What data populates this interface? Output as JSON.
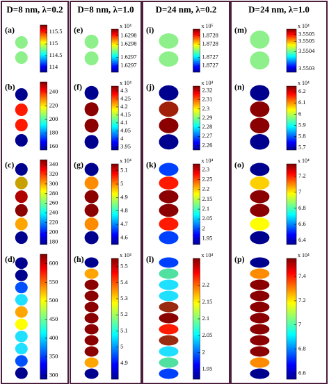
{
  "columns": [
    {
      "header": "D=8 nm, λ=0.2",
      "panels": [
        {
          "label": "(a)",
          "lim": [
            113.8,
            115.8
          ],
          "ticks": [
            115.5,
            115,
            114.5,
            114
          ],
          "shapes": [
            "#8ef08a",
            "#8ef08a"
          ]
        },
        {
          "label": "(b)",
          "lim": [
            155,
            255
          ],
          "ticks": [
            240,
            220,
            200,
            180,
            160
          ],
          "shapes": [
            "#00008f",
            "#ff1a00",
            "#ff1a00",
            "#00008f"
          ]
        },
        {
          "label": "(c)",
          "lim": [
            175,
            350
          ],
          "ticks": [
            340,
            320,
            300,
            280,
            260,
            240,
            220,
            200,
            180
          ],
          "shapes": [
            "#00008f",
            "#c8a000",
            "#b00000",
            "#8b0000",
            "#ffa500",
            "#00008f"
          ]
        },
        {
          "label": "(d)",
          "lim": [
            290,
            625
          ],
          "ticks": [
            600,
            550,
            500,
            450,
            400,
            350,
            300
          ],
          "shapes": [
            "#00008f",
            "#00008f",
            "#0050ff",
            "#20e0ff",
            "#ffa500",
            "#ffff00",
            "#20e0ff",
            "#20e0ff",
            "#0050ff",
            "#00008f"
          ]
        }
      ]
    },
    {
      "header": "D=8 nm, λ=1.0",
      "panels": [
        {
          "label": "(e)",
          "exponent": "x 10⁴",
          "lim": [
            1.62965,
            1.62985
          ],
          "ticks": [
            {
              "value": 1.62982,
              "label": "1.6298"
            },
            {
              "value": 1.62978,
              "label": "1.6298"
            },
            {
              "value": 1.62972,
              "label": "1.6297"
            },
            {
              "value": 1.62968,
              "label": "1.6297"
            }
          ],
          "shapes": [
            "#8ef08a",
            "#8ef08a"
          ]
        },
        {
          "label": "(f)",
          "exponent": "x 10⁴",
          "lim": [
            3.93,
            4.33
          ],
          "ticks": [
            4.3,
            4.25,
            4.2,
            4.15,
            4.1,
            4.05,
            4,
            3.95
          ],
          "shapes": [
            "#00008f",
            "#8b0000",
            "#8b0000",
            "#00008f"
          ]
        },
        {
          "label": "(g)",
          "exponent": "x 10⁴",
          "lim": [
            4.55,
            5.15
          ],
          "ticks": [
            5.1,
            5,
            4.9,
            4.8,
            4.7,
            4.6
          ],
          "shapes": [
            "#00008f",
            "#ff8c00",
            "#8b0000",
            "#8b0000",
            "#ff8c00",
            "#00008f"
          ]
        },
        {
          "label": "(h)",
          "exponent": "x 10⁴",
          "lim": [
            4.8,
            5.55
          ],
          "ticks": [
            5.5,
            5.4,
            5.3,
            5.2,
            5.1,
            5,
            4.9
          ],
          "shapes": [
            "#00008f",
            "#ffa500",
            "#8b0000",
            "#8b0000",
            "#8b0000",
            "#8b0000",
            "#8b0000",
            "#8b0000",
            "#8b0000",
            "#ffa500",
            "#00008f"
          ]
        }
      ]
    },
    {
      "header": "D=24 nm, λ=0.2",
      "panels": [
        {
          "label": "(i)",
          "exponent": "x 10⁵",
          "lim": [
            1.87265,
            1.87285
          ],
          "ticks": [
            {
              "value": 1.87282,
              "label": "1.8728"
            },
            {
              "value": 1.87278,
              "label": "1.8728"
            },
            {
              "value": 1.87272,
              "label": "1.8727"
            },
            {
              "value": 1.87268,
              "label": "1.8727"
            }
          ],
          "shapes": [
            "#8ef08a",
            "#8ef08a"
          ]
        },
        {
          "label": "(j)",
          "exponent": "x 10⁴",
          "lim": [
            2.255,
            2.325
          ],
          "ticks": [
            2.32,
            2.31,
            2.3,
            2.29,
            2.28,
            2.27,
            2.26
          ],
          "shapes": [
            "#00008f",
            "#a0200a",
            "#8b0000",
            "#00008f"
          ]
        },
        {
          "label": "(k)",
          "exponent": "x 10⁴",
          "lim": [
            1.92,
            2.33
          ],
          "ticks": [
            2.3,
            2.25,
            2.2,
            2.15,
            2.1,
            2.05,
            2,
            1.95
          ],
          "shapes": [
            "#0040ff",
            "#ff1a00",
            "#8b0000",
            "#8b0000",
            "#ff1a00",
            "#0040ff"
          ]
        },
        {
          "label": "(l)",
          "exponent": "x 10⁴",
          "lim": [
            1.92,
            2.28
          ],
          "ticks": [
            2.2,
            2.15,
            2.1,
            2.05,
            2,
            1.95
          ],
          "shapes": [
            "#0040ff",
            "#50e0a0",
            "#20e0ff",
            "#20e0ff",
            "#9a2a10",
            "#8b0000",
            "#ff1a00",
            "#9a2a10",
            "#20e0ff",
            "#50e0a0",
            "#0040ff"
          ]
        }
      ]
    },
    {
      "header": "D=24 nm, λ=1.0",
      "panels": [
        {
          "label": "(m)",
          "exponent": "x 10⁴",
          "lim": [
            3.5503,
            3.55055
          ],
          "ticks": [
            {
              "value": 3.55052,
              "label": "3.5505"
            },
            {
              "value": 3.55048,
              "label": "3.5505"
            },
            {
              "value": 3.55042,
              "label": "3.5504"
            },
            {
              "value": 3.55032,
              "label": "3.5503"
            }
          ],
          "shapes": [
            "#8ef08a",
            "#8ef08a"
          ]
        },
        {
          "label": "(n)",
          "exponent": "x 10⁴",
          "lim": [
            5.68,
            6.25
          ],
          "ticks": [
            6.2,
            6.1,
            6,
            5.9,
            5.8,
            5.7
          ],
          "shapes": [
            "#00008f",
            "#8b0000",
            "#8b0000",
            "#00008f"
          ]
        },
        {
          "label": "(o)",
          "exponent": "x 10⁴",
          "lim": [
            6.35,
            7.35
          ],
          "ticks": [
            7.2,
            7,
            6.8,
            6.6,
            6.4
          ],
          "shapes": [
            "#00008f",
            "#ffd000",
            "#8b0000",
            "#8b0000",
            "#ffff00",
            "#00008f"
          ]
        },
        {
          "label": "(p)",
          "exponent": "x 10⁴",
          "lim": [
            6.55,
            7.55
          ],
          "ticks": [
            7.4,
            7.2,
            7,
            6.8,
            6.6
          ],
          "shapes": [
            "#00008f",
            "#ff8c00",
            "#8b0000",
            "#8b0000",
            "#8b0000",
            "#8b0000",
            "#8b0000",
            "#8b0000",
            "#8b0000",
            "#ff8c00",
            "#00008f"
          ]
        }
      ]
    }
  ]
}
